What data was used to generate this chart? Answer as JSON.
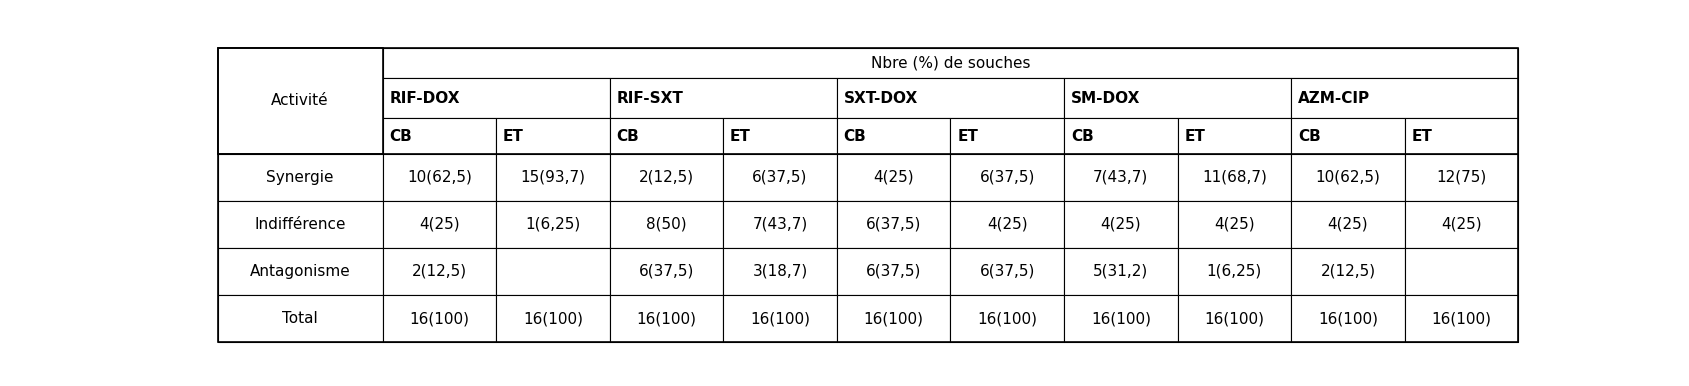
{
  "title": "Nbre (%) de souches",
  "col_groups": [
    "RIF-DOX",
    "RIF-SXT",
    "SXT-DOX",
    "SM-DOX",
    "AZM-CIP"
  ],
  "sub_cols": [
    "CB",
    "ET"
  ],
  "row_label_header": "Activité",
  "row_labels": [
    "Synergie",
    "Indifférence",
    "Antagonisme",
    "Total"
  ],
  "data": [
    [
      "10(62,5)",
      "15(93,7)",
      "2(12,5)",
      "6(37,5)",
      "4(25)",
      "6(37,5)",
      "7(43,7)",
      "11(68,7)",
      "10(62,5)",
      "12(75)"
    ],
    [
      "4(25)",
      "1(6,25)",
      "8(50)",
      "7(43,7)",
      "6(37,5)",
      "4(25)",
      "4(25)",
      "4(25)",
      "4(25)",
      "4(25)"
    ],
    [
      "2(12,5)",
      "",
      "6(37,5)",
      "3(18,7)",
      "6(37,5)",
      "6(37,5)",
      "5(31,2)",
      "1(6,25)",
      "2(12,5)",
      ""
    ],
    [
      "16(100)",
      "16(100)",
      "16(100)",
      "16(100)",
      "16(100)",
      "16(100)",
      "16(100)",
      "16(100)",
      "16(100)",
      "16(100)"
    ]
  ],
  "bg_color": "#ffffff",
  "line_color": "#000000",
  "font_size": 11,
  "header_font_size": 11,
  "title_font_size": 11
}
